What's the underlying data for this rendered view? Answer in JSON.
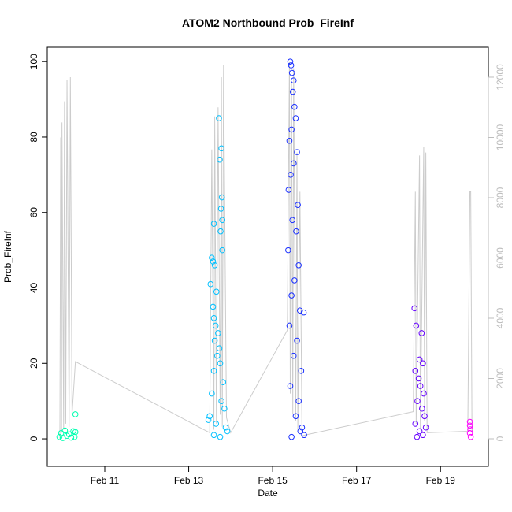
{
  "chart_data": {
    "type": "scatter",
    "title": "ATOM2 Northbound Prob_FireInf",
    "x_label": "Date",
    "y_label": "Prob_FireInf",
    "xlim": [
      9.63,
      20.14
    ],
    "ylim": [
      -7.3,
      103.8
    ],
    "y2lim": [
      -915,
      12993
    ],
    "xticks": [
      {
        "value": 11,
        "label": "Feb 11"
      },
      {
        "value": 13,
        "label": "Feb 13"
      },
      {
        "value": 15,
        "label": "Feb 15"
      },
      {
        "value": 17,
        "label": "Feb 17"
      },
      {
        "value": 19,
        "label": "Feb 19"
      }
    ],
    "yticks": [
      0,
      20,
      40,
      60,
      80,
      100
    ],
    "y2ticks": [
      0,
      2000,
      4000,
      6000,
      8000,
      10000,
      12000
    ],
    "series": [
      {
        "type": "line",
        "axis": "y2",
        "color": "#cccccc",
        "x": [
          9.93,
          9.95,
          9.97,
          9.98,
          10.02,
          10.04,
          10.07,
          10.1,
          10.15,
          10.18,
          10.22,
          10.3,
          13.5,
          13.55,
          13.6,
          13.62,
          13.66,
          13.7,
          13.75,
          13.78,
          13.8,
          13.83,
          13.9,
          14.0,
          15.35,
          15.4,
          15.42,
          15.45,
          15.48,
          15.5,
          15.55,
          15.58,
          15.6,
          15.65,
          15.7,
          18.35,
          18.4,
          18.42,
          18.5,
          18.52,
          18.6,
          18.62,
          18.65,
          18.68,
          19.65,
          19.7,
          19.72,
          19.75
        ],
        "values": [
          0,
          10000,
          200,
          10500,
          300,
          11200,
          500,
          11900,
          400,
          12000,
          800,
          2560,
          200,
          9600,
          300,
          10700,
          500,
          11000,
          800,
          12000,
          400,
          12400,
          700,
          200,
          3600,
          12500,
          1500,
          11800,
          800,
          12300,
          600,
          9500,
          300,
          8200,
          100,
          900,
          8200,
          500,
          9400,
          300,
          9700,
          600,
          9500,
          200,
          250,
          8200,
          8200,
          200
        ]
      },
      {
        "color": "#00ffb0",
        "x": [
          9.92,
          9.96,
          10.0,
          10.05,
          10.1,
          10.15,
          10.2,
          10.25,
          10.3,
          10.3,
          10.28
        ],
        "values": [
          0.5,
          1.5,
          0.2,
          2.2,
          0.8,
          1.2,
          0.3,
          2,
          6.5,
          1.8,
          0.5
        ]
      },
      {
        "color": "#00c0ff",
        "x": [
          13.6,
          13.55,
          13.58,
          13.52,
          13.72,
          13.78,
          13.74,
          13.79,
          13.77,
          13.8,
          13.76,
          13.8,
          13.62,
          13.66,
          13.58,
          13.6,
          13.64,
          13.7,
          13.62,
          13.73,
          13.68,
          13.75,
          13.6,
          13.82,
          13.55,
          13.78,
          13.85,
          13.5,
          13.47,
          13.65,
          13.88,
          13.92,
          13.6,
          13.75
        ],
        "values": [
          57,
          48,
          47,
          41,
          85,
          77,
          74,
          64,
          61,
          58,
          55,
          50,
          46,
          39,
          35,
          32,
          30,
          28,
          26,
          24,
          22,
          20,
          18,
          15,
          12,
          10,
          8,
          6,
          5,
          4,
          3,
          2,
          1,
          0.5
        ]
      },
      {
        "color": "#1a30ff",
        "x": [
          15.42,
          15.44,
          15.46,
          15.5,
          15.48,
          15.52,
          15.55,
          15.45,
          15.4,
          15.58,
          15.5,
          15.43,
          15.38,
          15.6,
          15.47,
          15.56,
          15.37,
          15.62,
          15.52,
          15.45,
          15.65,
          15.4,
          15.58,
          15.5,
          15.68,
          15.42,
          15.62,
          15.55,
          15.7,
          15.75,
          15.45,
          15.66,
          15.74
        ],
        "values": [
          100,
          99,
          97,
          95,
          92,
          88,
          85,
          82,
          79,
          76,
          73,
          70,
          66,
          62,
          58,
          55,
          50,
          46,
          42,
          38,
          34,
          30,
          26,
          22,
          18,
          14,
          10,
          6,
          3,
          1,
          0.5,
          2,
          33.5
        ]
      },
      {
        "color": "#6600ff",
        "x": [
          18.38,
          18.42,
          18.55,
          18.5,
          18.58,
          18.4,
          18.48,
          18.52,
          18.6,
          18.45,
          18.56,
          18.62,
          18.4,
          18.65,
          18.5,
          18.58,
          18.44
        ],
        "values": [
          34.6,
          30,
          28,
          21,
          20,
          18,
          16,
          14,
          12,
          10,
          8,
          6,
          4,
          3,
          2,
          1,
          0.5
        ]
      },
      {
        "color": "#ff00ff",
        "x": [
          19.7,
          19.7,
          19.71,
          19.7,
          19.72
        ],
        "values": [
          4.5,
          3.5,
          2.5,
          1.5,
          0.5
        ]
      }
    ]
  }
}
